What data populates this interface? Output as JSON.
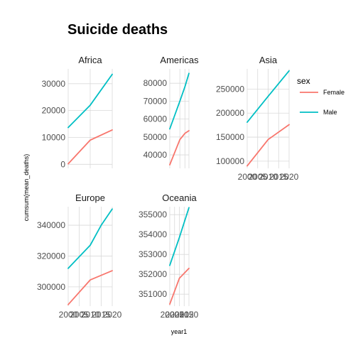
{
  "chart_data": {
    "type": "line",
    "title": "Suicide deaths",
    "xlabel": "year1",
    "ylabel": "cumsum(mean_deaths)",
    "grid": true,
    "legend": {
      "title": "sex",
      "placement": "right",
      "entries": [
        {
          "name": "Female",
          "color": "#F8766D"
        },
        {
          "name": "Male",
          "color": "#00BFC4"
        }
      ]
    },
    "facets": [
      {
        "label": "Africa",
        "xlim": [
          2000,
          2020
        ],
        "x_ticks": [],
        "x_tick_labels": [],
        "ylim": [
          -1500,
          35500
        ],
        "y_ticks": [
          0,
          10000,
          20000,
          30000
        ],
        "y_tick_labels": [
          "0",
          "10000",
          "20000",
          "30000"
        ],
        "series": [
          {
            "name": "Female",
            "x": [
              2000,
              2010,
              2020
            ],
            "y": [
              200,
              9000,
              12800
            ]
          },
          {
            "name": "Male",
            "x": [
              2000,
              2010,
              2020
            ],
            "y": [
              13700,
              22000,
              33500
            ]
          }
        ]
      },
      {
        "label": "Americas",
        "xlim": [
          2000,
          2019
        ],
        "x_ticks": [],
        "x_tick_labels": [],
        "ylim": [
          32500,
          88000
        ],
        "y_ticks": [
          40000,
          50000,
          60000,
          70000,
          80000
        ],
        "y_tick_labels": [
          "40000",
          "50000",
          "60000",
          "70000",
          "80000"
        ],
        "series": [
          {
            "name": "Female",
            "x": [
              2000,
              2010,
              2015,
              2019
            ],
            "y": [
              34500,
              48500,
              52000,
              53500
            ]
          },
          {
            "name": "Male",
            "x": [
              2000,
              2010,
              2015,
              2019
            ],
            "y": [
              54500,
              70000,
              78000,
              85500
            ]
          }
        ]
      },
      {
        "label": "Asia",
        "xlim": [
          2000,
          2020
        ],
        "x_ticks": [
          2000,
          2005,
          2010,
          2015,
          2020
        ],
        "x_tick_labels": [
          "2000",
          "2005",
          "2010",
          "2015",
          "2020"
        ],
        "ylim": [
          85000,
          292000
        ],
        "y_ticks": [
          100000,
          150000,
          200000,
          250000
        ],
        "y_tick_labels": [
          "100000",
          "150000",
          "200000",
          "250000"
        ],
        "series": [
          {
            "name": "Female",
            "x": [
              2000,
              2010,
              2020
            ],
            "y": [
              90000,
              145000,
              176000
            ]
          },
          {
            "name": "Male",
            "x": [
              2000,
              2010,
              2020
            ],
            "y": [
              181000,
              235000,
              288000
            ]
          }
        ]
      },
      {
        "label": "Europe",
        "xlim": [
          2000,
          2020
        ],
        "x_ticks": [
          2000,
          2005,
          2010,
          2015,
          2020
        ],
        "x_tick_labels": [
          "2000",
          "2005",
          "2010",
          "2015",
          "2020"
        ],
        "ylim": [
          287500,
          352000
        ],
        "y_ticks": [
          300000,
          320000,
          340000
        ],
        "y_tick_labels": [
          "300000",
          "320000",
          "340000"
        ],
        "series": [
          {
            "name": "Female",
            "x": [
              2000,
              2010,
              2020
            ],
            "y": [
              288500,
              304500,
              310500
            ]
          },
          {
            "name": "Male",
            "x": [
              2000,
              2010,
              2015,
              2020
            ],
            "y": [
              312000,
              327000,
              340000,
              350500
            ]
          }
        ]
      },
      {
        "label": "Oceania",
        "xlim": [
          2000,
          2020
        ],
        "x_ticks": [
          2000,
          2005,
          2010,
          2015,
          2020
        ],
        "x_tick_labels": [
          "2000",
          "2005",
          "2010",
          "2015",
          "2020"
        ],
        "ylim": [
          350400,
          355400
        ],
        "y_ticks": [
          351000,
          352000,
          353000,
          354000,
          355000
        ],
        "y_tick_labels": [
          "351000",
          "352000",
          "353000",
          "354000",
          "355000"
        ],
        "series": [
          {
            "name": "Female",
            "x": [
              2000,
              2010,
              2020
            ],
            "y": [
              350500,
              351800,
              352300
            ]
          },
          {
            "name": "Male",
            "x": [
              2000,
              2010,
              2020
            ],
            "y": [
              352450,
              353850,
              355350
            ]
          }
        ]
      }
    ]
  }
}
